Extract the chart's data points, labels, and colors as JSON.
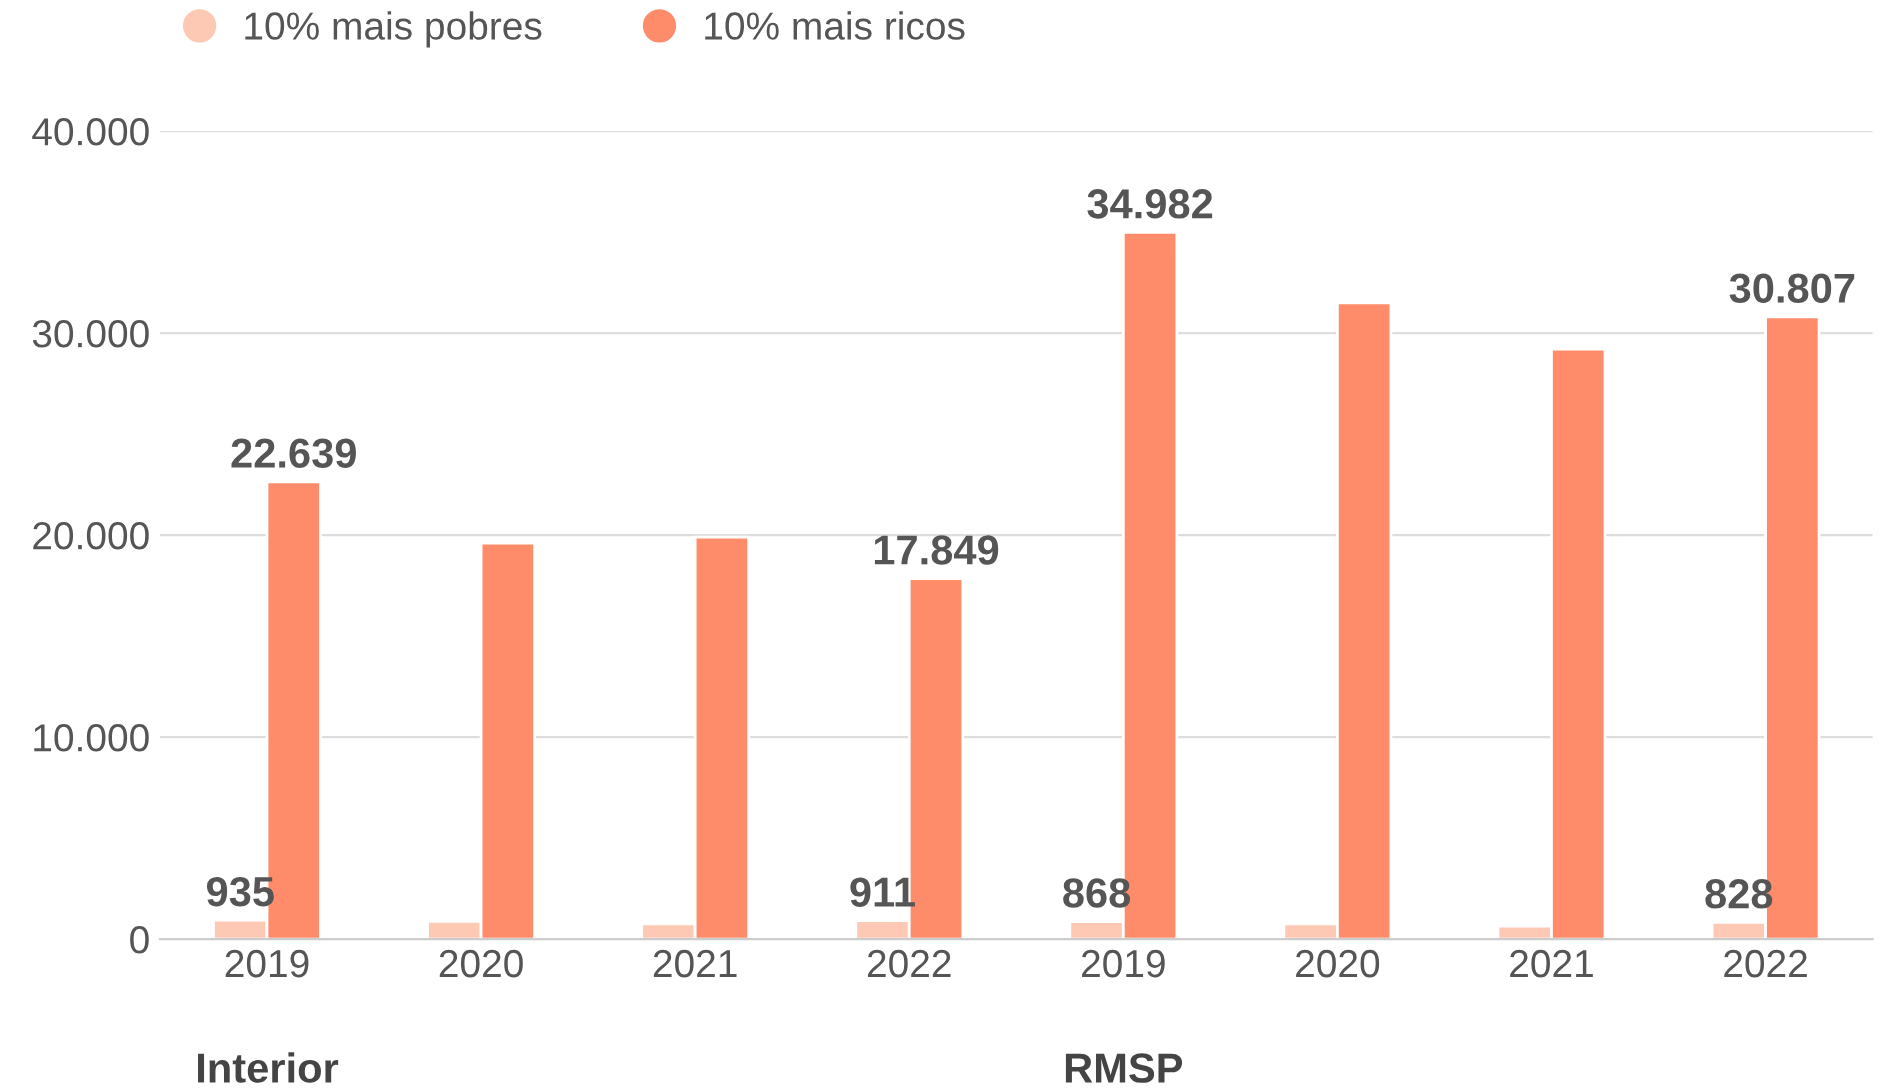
{
  "chart_data": {
    "type": "bar",
    "categories": [
      "2019",
      "2020",
      "2021",
      "2022",
      "2019",
      "2020",
      "2021",
      "2022"
    ],
    "series": [
      {
        "name": "10% mais pobres",
        "color": "#fdc9b4",
        "values": [
          935,
          880,
          760,
          911,
          868,
          760,
          640,
          828
        ],
        "value_labels": [
          "935",
          null,
          null,
          "911",
          "868",
          null,
          null,
          "828"
        ]
      },
      {
        "name": "10% mais ricos",
        "color": "#fe8c6b",
        "values": [
          22639,
          19600,
          19900,
          17849,
          34982,
          31500,
          29200,
          30807
        ],
        "value_labels": [
          "22.639",
          null,
          null,
          "17.849",
          "34.982",
          null,
          null,
          "30.807"
        ]
      }
    ],
    "annotations": [
      "Interior",
      "RMSP"
    ],
    "ylim": [
      0,
      40000
    ],
    "yticks": [
      {
        "value": 0,
        "label": "0"
      },
      {
        "value": 10000,
        "label": "10.000"
      },
      {
        "value": 20000,
        "label": "20.000"
      },
      {
        "value": 30000,
        "label": "30.000"
      },
      {
        "value": 40000,
        "label": "40.000"
      }
    ],
    "grid": "y",
    "legend": "top left"
  }
}
